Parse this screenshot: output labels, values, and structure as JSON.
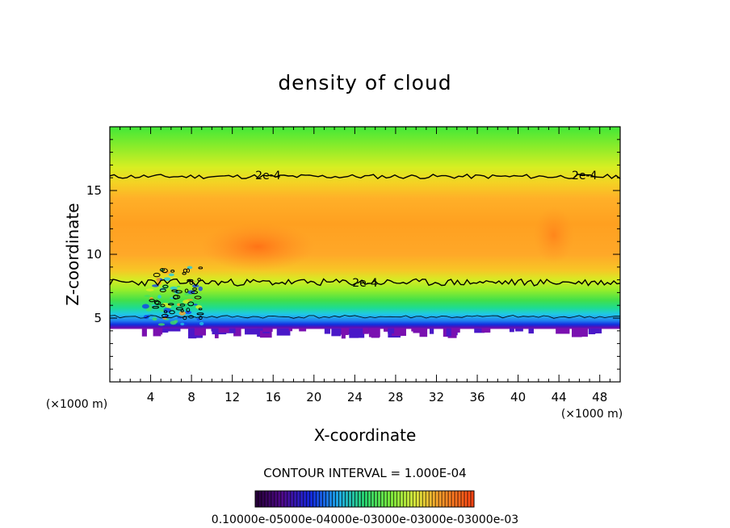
{
  "chart_data": {
    "type": "heatmap",
    "title": "density of cloud",
    "xlabel": "X-coordinate",
    "ylabel": "Z-coordinate",
    "x_unit": "(×1000 m)",
    "x_unit_right": "(×1000 m)",
    "xlim": [
      0,
      50
    ],
    "ylim": [
      0,
      20
    ],
    "x_ticks": [
      4,
      8,
      12,
      16,
      20,
      24,
      28,
      32,
      36,
      40,
      44,
      48
    ],
    "y_ticks": [
      5,
      10,
      15
    ],
    "contour_labels": [
      {
        "text": "2e-4",
        "x": 15.5,
        "y": 16.2
      },
      {
        "text": "2e-4",
        "x": 46.5,
        "y": 16.2
      },
      {
        "text": "2e-4",
        "x": 25.0,
        "y": 7.8
      }
    ],
    "contour_interval_text": "CONTOUR INTERVAL = 1.000E-04",
    "colorbar_labels": [
      "0.1000e-05",
      "0.6000e-04",
      "0.1200e-03",
      "0.1800e-03",
      "0.2400e-03",
      "0.3000e-03"
    ],
    "colorbar_label_text": "0.10000e-05000e-04000e-03000e-03000e-03000e-03",
    "colors": {
      "low": "#6a0aa8",
      "blue": "#1040f0",
      "cyan": "#20c8e8",
      "green": "#30e040",
      "yellow": "#e6f020",
      "orange": "#ffa020",
      "high": "#ff5a10"
    },
    "grid": false,
    "legend": "colorbar-bottom"
  }
}
